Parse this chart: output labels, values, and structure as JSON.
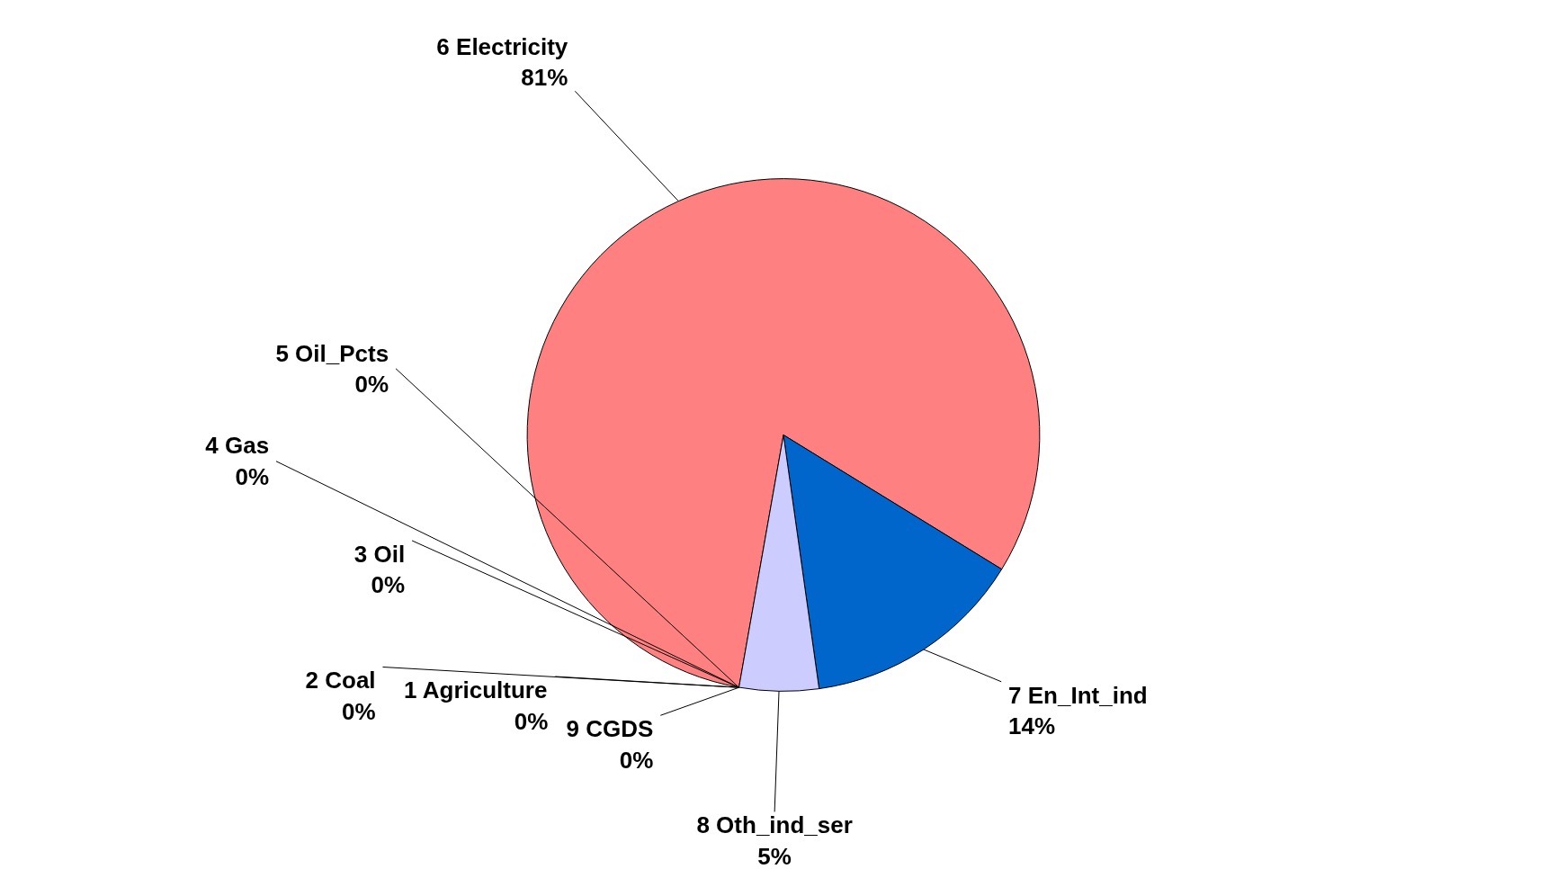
{
  "chart_data": {
    "type": "pie",
    "categories": [
      "1 Agriculture",
      "2 Coal",
      "3 Oil",
      "4 Gas",
      "5 Oil_Pcts",
      "6 Electricity",
      "7 En_Int_ind",
      "8 Oth_ind_ser",
      "9 CGDS"
    ],
    "values": [
      0,
      0,
      0,
      0,
      0,
      81,
      14,
      5,
      0
    ],
    "value_labels": [
      "0%",
      "0%",
      "0%",
      "0%",
      "0%",
      "81%",
      "14%",
      "5%",
      "0%"
    ],
    "colors": [
      "#9999ff",
      "#993366",
      "#ffffcc",
      "#ccffff",
      "#660066",
      "#ff8080",
      "#0066cc",
      "#ccccff",
      "#000080"
    ]
  }
}
